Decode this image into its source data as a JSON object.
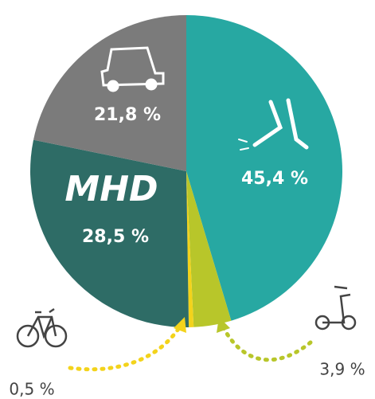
{
  "chart_data": {
    "type": "pie",
    "categories": [
      null,
      null,
      null,
      "MHD",
      null
    ],
    "values": [
      45.4,
      3.9,
      0.5,
      28.5,
      21.8
    ],
    "value_labels": [
      "45,4 %",
      "3,9 %",
      "0,5 %",
      "28,5 %",
      "21,8 %"
    ],
    "colors": [
      "#27a8a2",
      "#b8c62a",
      "#f3d31b",
      "#2e6c66",
      "#7b7b7b"
    ]
  }
}
